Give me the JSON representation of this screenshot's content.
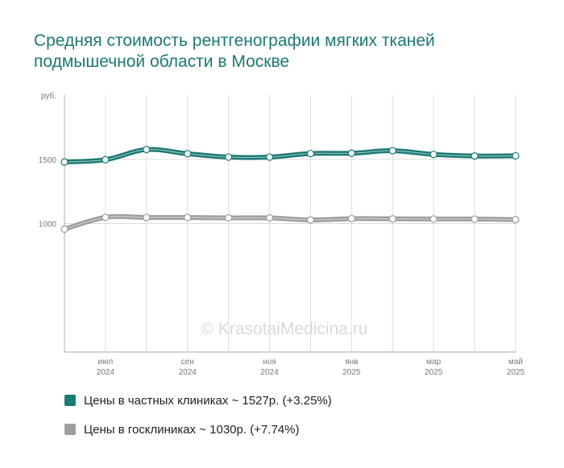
{
  "chart_data": {
    "type": "line",
    "title": "Средняя стоимость рентгенографии мягких тканей подмышечной области в Москве",
    "ylabel": "руб.",
    "ylim": [
      0,
      2000
    ],
    "yticks": [
      1000,
      1500
    ],
    "ytick_labels": [
      "1000",
      "1500"
    ],
    "xtick_labels": [
      {
        "month": "июл",
        "year": "2024"
      },
      {
        "month": "сен",
        "year": "2024"
      },
      {
        "month": "ноя",
        "year": "2024"
      },
      {
        "month": "янв",
        "year": "2025"
      },
      {
        "month": "мар",
        "year": "2025"
      },
      {
        "month": "май",
        "year": "2025"
      }
    ],
    "xtick_index": [
      1,
      3,
      5,
      7,
      9,
      11
    ],
    "x": [
      "2024-06",
      "2024-07",
      "2024-08",
      "2024-09",
      "2024-10",
      "2024-11",
      "2024-12",
      "2025-01",
      "2025-02",
      "2025-03",
      "2025-04",
      "2025-05"
    ],
    "grid": true,
    "watermark": "© KrasotaiMedicina.ru",
    "series": [
      {
        "name": "Цены в частных клиниках ~ 1527р. (+3.25%)",
        "color": "#1b7a73",
        "values": [
          1479,
          1497,
          1576,
          1543,
          1517,
          1517,
          1545,
          1547,
          1567,
          1538,
          1526,
          1527
        ]
      },
      {
        "name": "Цены в госклиниках ~ 1030р. (+7.74%)",
        "color": "#9e9e9e",
        "values": [
          956,
          1048,
          1047,
          1047,
          1044,
          1044,
          1028,
          1038,
          1037,
          1035,
          1035,
          1030
        ]
      }
    ]
  }
}
